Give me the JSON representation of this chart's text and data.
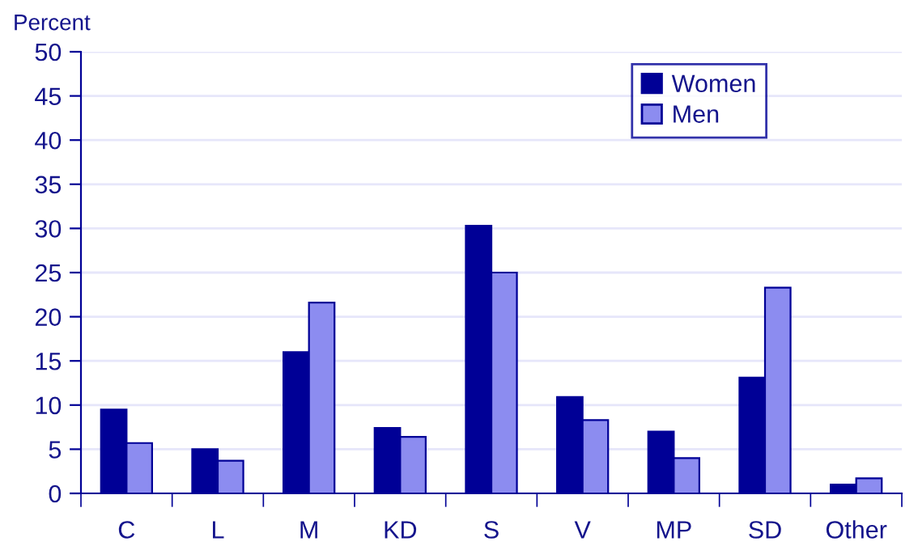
{
  "chart_data": {
    "type": "bar",
    "ylabel": "Percent",
    "categories": [
      "C",
      "L",
      "M",
      "KD",
      "S",
      "V",
      "MP",
      "SD",
      "Other"
    ],
    "series": [
      {
        "name": "Women",
        "color": "#000096",
        "values": [
          9.5,
          5.0,
          16.0,
          7.4,
          30.3,
          10.9,
          7.0,
          13.1,
          1.0
        ]
      },
      {
        "name": "Men",
        "color": "#8c8cf0",
        "values": [
          5.7,
          3.7,
          21.6,
          6.4,
          25.0,
          8.3,
          4.0,
          23.3,
          1.7
        ]
      }
    ],
    "ylim": [
      0,
      50
    ],
    "yticks": [
      0,
      5,
      10,
      15,
      20,
      25,
      30,
      35,
      40,
      45,
      50
    ],
    "grid": "y",
    "legend": "top right"
  }
}
